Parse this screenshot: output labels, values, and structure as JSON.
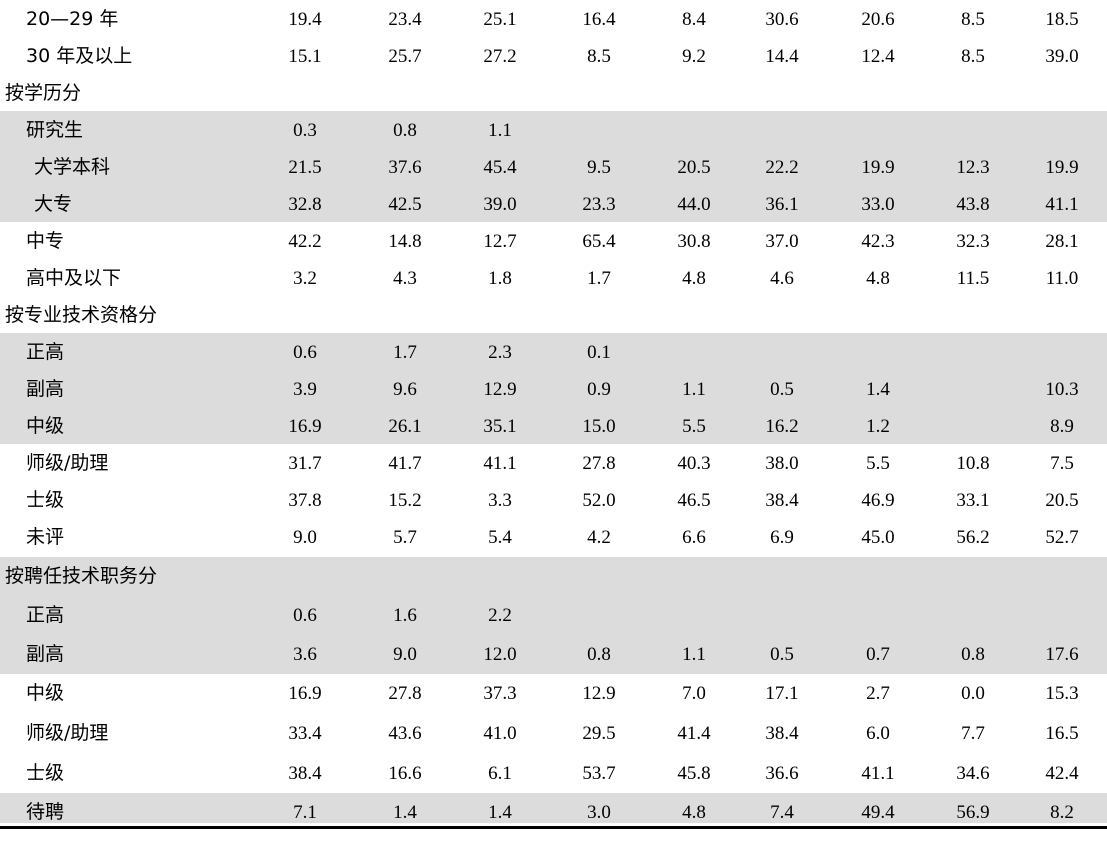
{
  "rows": [
    {
      "label": "20—29 年",
      "values": [
        "19.4",
        "23.4",
        "25.1",
        "16.4",
        "8.4",
        "30.6",
        "20.6",
        "8.5",
        "18.5"
      ]
    },
    {
      "label": "30 年及以上",
      "values": [
        "15.1",
        "25.7",
        "27.2",
        "8.5",
        "9.2",
        "14.4",
        "12.4",
        "8.5",
        "39.0"
      ]
    },
    {
      "label": "按学历分",
      "values": [
        "",
        "",
        "",
        "",
        "",
        "",
        "",
        "",
        ""
      ]
    },
    {
      "label": "研究生",
      "values": [
        "0.3",
        "0.8",
        "1.1",
        "",
        "",
        "",
        "",
        "",
        ""
      ]
    },
    {
      "label": "大学本科",
      "values": [
        "21.5",
        "37.6",
        "45.4",
        "9.5",
        "20.5",
        "22.2",
        "19.9",
        "12.3",
        "19.9"
      ]
    },
    {
      "label": "大专",
      "values": [
        "32.8",
        "42.5",
        "39.0",
        "23.3",
        "44.0",
        "36.1",
        "33.0",
        "43.8",
        "41.1"
      ]
    },
    {
      "label": "中专",
      "values": [
        "42.2",
        "14.8",
        "12.7",
        "65.4",
        "30.8",
        "37.0",
        "42.3",
        "32.3",
        "28.1"
      ]
    },
    {
      "label": "高中及以下",
      "values": [
        "3.2",
        "4.3",
        "1.8",
        "1.7",
        "4.8",
        "4.6",
        "4.8",
        "11.5",
        "11.0"
      ]
    },
    {
      "label": "按专业技术资格分",
      "values": [
        "",
        "",
        "",
        "",
        "",
        "",
        "",
        "",
        ""
      ]
    },
    {
      "label": "正高",
      "values": [
        "0.6",
        "1.7",
        "2.3",
        "0.1",
        "",
        "",
        "",
        "",
        ""
      ]
    },
    {
      "label": "副高",
      "values": [
        "3.9",
        "9.6",
        "12.9",
        "0.9",
        "1.1",
        "0.5",
        "1.4",
        "",
        "10.3"
      ]
    },
    {
      "label": "中级",
      "values": [
        "16.9",
        "26.1",
        "35.1",
        "15.0",
        "5.5",
        "16.2",
        "1.2",
        "",
        "8.9"
      ]
    },
    {
      "label": "师级/助理",
      "values": [
        "31.7",
        "41.7",
        "41.1",
        "27.8",
        "40.3",
        "38.0",
        "5.5",
        "10.8",
        "7.5"
      ]
    },
    {
      "label": "士级",
      "values": [
        "37.8",
        "15.2",
        "3.3",
        "52.0",
        "46.5",
        "38.4",
        "46.9",
        "33.1",
        "20.5"
      ]
    },
    {
      "label": "未评",
      "values": [
        "9.0",
        "5.7",
        "5.4",
        "4.2",
        "6.6",
        "6.9",
        "45.0",
        "56.2",
        "52.7"
      ]
    },
    {
      "label": "按聘任技术职务分",
      "values": [
        "",
        "",
        "",
        "",
        "",
        "",
        "",
        "",
        ""
      ]
    },
    {
      "label": "正高",
      "values": [
        "0.6",
        "1.6",
        "2.2",
        "",
        "",
        "",
        "",
        "",
        ""
      ]
    },
    {
      "label": "副高",
      "values": [
        "3.6",
        "9.0",
        "12.0",
        "0.8",
        "1.1",
        "0.5",
        "0.7",
        "0.8",
        "17.6"
      ]
    },
    {
      "label": "中级",
      "values": [
        "16.9",
        "27.8",
        "37.3",
        "12.9",
        "7.0",
        "17.1",
        "2.7",
        "0.0",
        "15.3"
      ]
    },
    {
      "label": "师级/助理",
      "values": [
        "33.4",
        "43.6",
        "41.0",
        "29.5",
        "41.4",
        "38.4",
        "6.0",
        "7.7",
        "16.5"
      ]
    },
    {
      "label": "士级",
      "values": [
        "38.4",
        "16.6",
        "6.1",
        "53.7",
        "45.8",
        "36.6",
        "41.1",
        "34.6",
        "42.4"
      ]
    },
    {
      "label": "待聘",
      "values": [
        "7.1",
        "1.4",
        "1.4",
        "3.0",
        "4.8",
        "7.4",
        "49.4",
        "56.9",
        "8.2"
      ]
    }
  ]
}
